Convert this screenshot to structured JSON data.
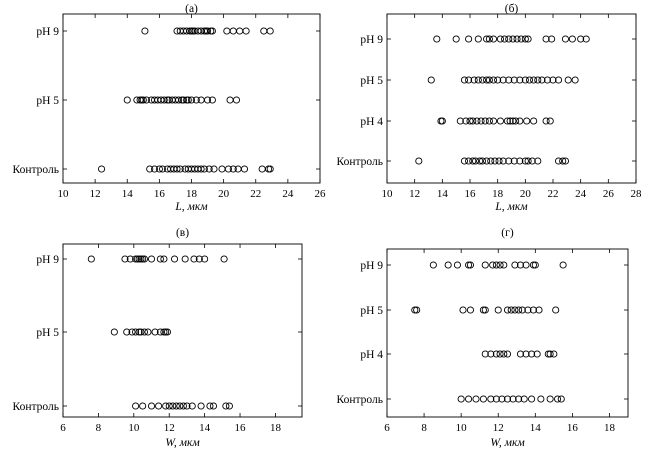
{
  "chart_data": [
    {
      "type": "scatter",
      "title": "(а)",
      "xlabel": "L,  мкм",
      "xlim": [
        10,
        26
      ],
      "xticks": [
        "10",
        "12",
        "14",
        "16",
        "18",
        "20",
        "22",
        "24",
        "26"
      ],
      "categories": [
        "рН 9",
        "рН 5",
        "Контроль"
      ],
      "series": [
        {
          "category": "рН 9",
          "x": [
            15.1,
            17.1,
            17.3,
            17.5,
            17.7,
            17.9,
            18.0,
            18.1,
            18.2,
            18.4,
            18.6,
            18.8,
            18.9,
            19.0,
            19.2,
            19.3,
            20.2,
            20.6,
            21.0,
            21.4,
            22.5,
            22.9
          ]
        },
        {
          "category": "рН 5",
          "x": [
            14.0,
            14.6,
            14.8,
            14.9,
            15.0,
            15.2,
            15.5,
            15.7,
            15.9,
            16.1,
            16.3,
            16.5,
            16.6,
            16.8,
            17.0,
            17.2,
            17.4,
            17.5,
            17.7,
            17.8,
            18.0,
            18.3,
            18.6,
            19.0,
            19.3,
            20.4,
            20.8
          ]
        },
        {
          "category": "Контроль",
          "x": [
            12.4,
            15.4,
            15.7,
            16.0,
            16.2,
            16.5,
            16.7,
            16.9,
            17.1,
            17.3,
            17.6,
            17.8,
            18.0,
            18.2,
            18.4,
            18.6,
            18.8,
            19.1,
            19.4,
            19.9,
            20.3,
            20.6,
            20.9,
            21.3,
            22.4,
            22.8,
            22.9
          ]
        }
      ]
    },
    {
      "type": "scatter",
      "title": "(б)",
      "xlabel": "L,  мкм",
      "xlim": [
        10,
        28
      ],
      "xticks": [
        "10",
        "12",
        "14",
        "16",
        "18",
        "20",
        "22",
        "24",
        "26",
        "28"
      ],
      "categories": [
        "рН 9",
        "рН 5",
        "рН 4",
        "Контроль"
      ],
      "series": [
        {
          "category": "рН 9",
          "x": [
            13.6,
            15.0,
            15.9,
            16.6,
            17.2,
            17.4,
            17.7,
            18.2,
            18.5,
            18.8,
            19.1,
            19.4,
            19.7,
            20.0,
            20.2,
            21.5,
            21.9,
            22.9,
            23.4,
            24.0,
            24.4
          ]
        },
        {
          "category": "рН 5",
          "x": [
            13.2,
            15.6,
            15.9,
            16.3,
            16.6,
            16.9,
            17.2,
            17.4,
            17.7,
            18.0,
            18.4,
            18.8,
            19.2,
            19.6,
            20.0,
            20.3,
            20.6,
            20.9,
            21.2,
            21.6,
            22.0,
            22.4,
            23.1,
            23.6
          ]
        },
        {
          "category": "рН 4",
          "x": [
            13.9,
            14.0,
            15.3,
            15.7,
            16.0,
            16.2,
            16.5,
            16.8,
            17.1,
            17.4,
            17.7,
            18.2,
            18.7,
            18.9,
            19.1,
            19.3,
            19.6,
            20.1,
            20.6,
            21.5,
            21.8
          ]
        },
        {
          "category": "Контроль",
          "x": [
            12.3,
            15.6,
            15.9,
            16.2,
            16.4,
            16.7,
            16.9,
            17.2,
            17.5,
            17.8,
            18.1,
            18.4,
            18.8,
            19.2,
            19.6,
            20.0,
            20.2,
            20.5,
            20.9,
            22.4,
            22.7,
            22.9
          ]
        }
      ]
    },
    {
      "type": "scatter",
      "title": "(в)",
      "xlabel": "W,  мкм",
      "xlim": [
        6,
        19.5
      ],
      "xticks": [
        "6",
        "8",
        "10",
        "12",
        "14",
        "16",
        "18"
      ],
      "categories": [
        "рН 9",
        "рН 5",
        "Контроль"
      ],
      "series": [
        {
          "category": "рН 9",
          "x": [
            7.6,
            9.5,
            9.8,
            10.1,
            10.2,
            10.3,
            10.4,
            10.5,
            10.6,
            11.0,
            11.5,
            11.7,
            12.3,
            12.9,
            13.4,
            13.7,
            14.0,
            15.1
          ]
        },
        {
          "category": "рН 5",
          "x": [
            8.9,
            9.6,
            9.9,
            10.1,
            10.3,
            10.4,
            10.6,
            10.8,
            11.2,
            11.5,
            11.7,
            11.8,
            11.9
          ]
        },
        {
          "category": "Контроль",
          "x": [
            10.1,
            10.5,
            11.0,
            11.4,
            11.8,
            12.0,
            12.2,
            12.4,
            12.6,
            12.8,
            13.0,
            13.3,
            13.8,
            14.3,
            14.5,
            15.2,
            15.4
          ]
        }
      ]
    },
    {
      "type": "scatter",
      "title": "(г)",
      "xlabel": "W,  мкм",
      "xlim": [
        6,
        19
      ],
      "xticks": [
        "6",
        "8",
        "10",
        "12",
        "14",
        "16",
        "18"
      ],
      "categories": [
        "рН 9",
        "рН 5",
        "рН 4",
        "Контроль"
      ],
      "series": [
        {
          "category": "рН 9",
          "x": [
            8.5,
            9.3,
            9.8,
            10.4,
            10.5,
            11.3,
            11.7,
            11.9,
            12.1,
            12.3,
            12.9,
            13.2,
            13.5,
            13.9,
            14.0,
            15.5
          ]
        },
        {
          "category": "рН 5",
          "x": [
            7.5,
            7.6,
            10.1,
            10.5,
            11.2,
            11.3,
            12.0,
            12.5,
            12.7,
            12.9,
            13.1,
            13.3,
            13.6,
            13.9,
            14.2,
            15.1
          ]
        },
        {
          "category": "рН 4",
          "x": [
            11.3,
            11.6,
            11.9,
            12.1,
            12.3,
            12.5,
            13.2,
            13.5,
            13.8,
            14.1,
            14.7,
            14.8,
            15.0
          ]
        },
        {
          "category": "Контроль",
          "x": [
            10.0,
            10.4,
            10.8,
            11.2,
            11.6,
            11.9,
            12.2,
            12.5,
            12.8,
            13.1,
            13.4,
            13.8,
            14.3,
            14.8,
            15.2,
            15.4
          ]
        }
      ]
    }
  ]
}
